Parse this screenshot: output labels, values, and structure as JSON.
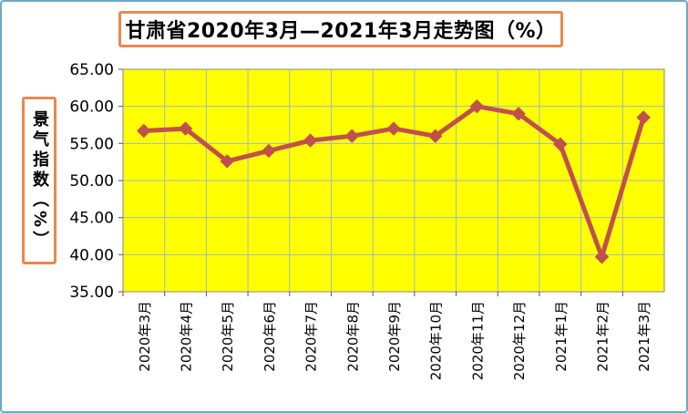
{
  "chart_data": {
    "type": "line",
    "title": "甘肃省2020年3月—2021年3月走势图（%）",
    "ylabel": "景气指数（%）",
    "xlabel": "",
    "categories": [
      "2020年3月",
      "2020年4月",
      "2020年5月",
      "2020年6月",
      "2020年7月",
      "2020年8月",
      "2020年9月",
      "2020年10月",
      "2020年11月",
      "2020年12月",
      "2021年1月",
      "2021年2月",
      "2021年3月"
    ],
    "series": [
      {
        "values": [
          56.7,
          57.0,
          52.6,
          54.0,
          55.4,
          56.0,
          57.0,
          56.0,
          60.0,
          59.0,
          54.9,
          39.7,
          58.5
        ]
      }
    ],
    "ylim": [
      35.0,
      65.0
    ],
    "yticks": [
      "35.00",
      "40.00",
      "45.00",
      "50.00",
      "55.00",
      "60.00",
      "65.00"
    ],
    "grid": true,
    "colors": {
      "plot_background": "#ffff00",
      "line": "#c0504d",
      "marker": "#c0504d",
      "gridline": "#9fb7cf",
      "label_border": "#e8894f"
    }
  }
}
